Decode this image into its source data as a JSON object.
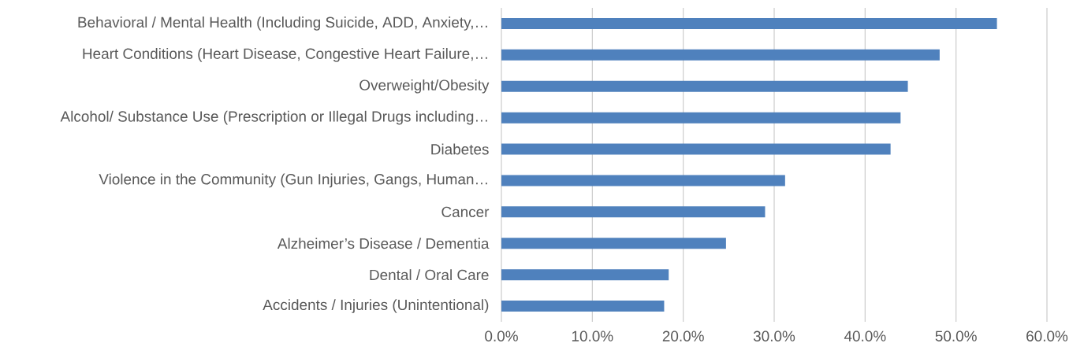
{
  "chart_data": {
    "type": "bar",
    "orientation": "horizontal",
    "categories": [
      "Behavioral / Mental Health (Including Suicide, ADD, Anxiety,…",
      "Heart Conditions (Heart Disease, Congestive Heart Failure,…",
      "Overweight/Obesity",
      "Alcohol/ Substance Use (Prescription or Illegal Drugs including…",
      "Diabetes",
      "Violence in the Community (Gun Injuries, Gangs, Human…",
      "Cancer",
      "Alzheimer’s Disease / Dementia",
      "Dental / Oral Care",
      "Accidents / Injuries (Unintentional)"
    ],
    "values": [
      54.5,
      48.2,
      44.7,
      43.9,
      42.8,
      31.2,
      29.0,
      24.7,
      18.4,
      17.9
    ],
    "color": "#4f81bd",
    "xlim": [
      0,
      60
    ],
    "xticks": [
      {
        "value": 0,
        "label": "0.0%"
      },
      {
        "value": 10,
        "label": "10.0%"
      },
      {
        "value": 20,
        "label": "20.0%"
      },
      {
        "value": 30,
        "label": "30.0%"
      },
      {
        "value": 40,
        "label": "40.0%"
      },
      {
        "value": 50,
        "label": "50.0%"
      },
      {
        "value": 60,
        "label": "60.0%"
      }
    ],
    "grid": "x"
  }
}
